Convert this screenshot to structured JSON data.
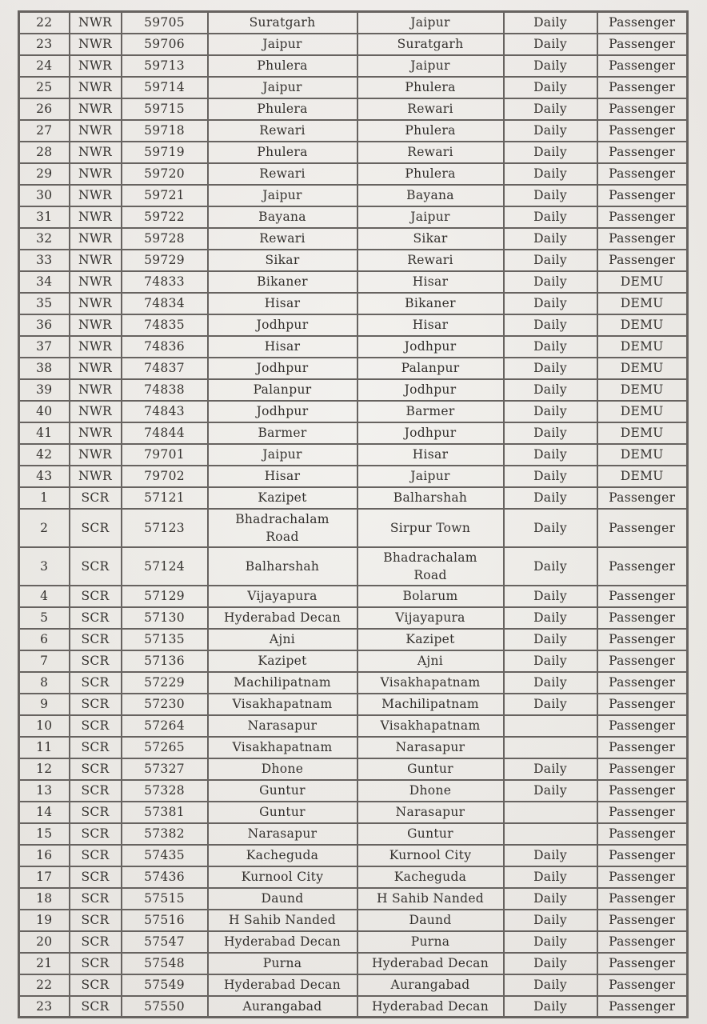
{
  "table": {
    "rows": [
      {
        "sn": "22",
        "zone": "NWR",
        "train_no": "59705",
        "origin": "Suratgarh",
        "destination": "Jaipur",
        "frequency": "Daily",
        "type": "Passenger"
      },
      {
        "sn": "23",
        "zone": "NWR",
        "train_no": "59706",
        "origin": "Jaipur",
        "destination": "Suratgarh",
        "frequency": "Daily",
        "type": "Passenger"
      },
      {
        "sn": "24",
        "zone": "NWR",
        "train_no": "59713",
        "origin": "Phulera",
        "destination": "Jaipur",
        "frequency": "Daily",
        "type": "Passenger"
      },
      {
        "sn": "25",
        "zone": "NWR",
        "train_no": "59714",
        "origin": "Jaipur",
        "destination": "Phulera",
        "frequency": "Daily",
        "type": "Passenger"
      },
      {
        "sn": "26",
        "zone": "NWR",
        "train_no": "59715",
        "origin": "Phulera",
        "destination": "Rewari",
        "frequency": "Daily",
        "type": "Passenger"
      },
      {
        "sn": "27",
        "zone": "NWR",
        "train_no": "59718",
        "origin": "Rewari",
        "destination": "Phulera",
        "frequency": "Daily",
        "type": "Passenger"
      },
      {
        "sn": "28",
        "zone": "NWR",
        "train_no": "59719",
        "origin": "Phulera",
        "destination": "Rewari",
        "frequency": "Daily",
        "type": "Passenger"
      },
      {
        "sn": "29",
        "zone": "NWR",
        "train_no": "59720",
        "origin": "Rewari",
        "destination": "Phulera",
        "frequency": "Daily",
        "type": "Passenger"
      },
      {
        "sn": "30",
        "zone": "NWR",
        "train_no": "59721",
        "origin": "Jaipur",
        "destination": "Bayana",
        "frequency": "Daily",
        "type": "Passenger"
      },
      {
        "sn": "31",
        "zone": "NWR",
        "train_no": "59722",
        "origin": "Bayana",
        "destination": "Jaipur",
        "frequency": "Daily",
        "type": "Passenger"
      },
      {
        "sn": "32",
        "zone": "NWR",
        "train_no": "59728",
        "origin": "Rewari",
        "destination": "Sikar",
        "frequency": "Daily",
        "type": "Passenger"
      },
      {
        "sn": "33",
        "zone": "NWR",
        "train_no": "59729",
        "origin": "Sikar",
        "destination": "Rewari",
        "frequency": "Daily",
        "type": "Passenger"
      },
      {
        "sn": "34",
        "zone": "NWR",
        "train_no": "74833",
        "origin": "Bikaner",
        "destination": "Hisar",
        "frequency": "Daily",
        "type": "DEMU"
      },
      {
        "sn": "35",
        "zone": "NWR",
        "train_no": "74834",
        "origin": "Hisar",
        "destination": "Bikaner",
        "frequency": "Daily",
        "type": "DEMU"
      },
      {
        "sn": "36",
        "zone": "NWR",
        "train_no": "74835",
        "origin": "Jodhpur",
        "destination": "Hisar",
        "frequency": "Daily",
        "type": "DEMU"
      },
      {
        "sn": "37",
        "zone": "NWR",
        "train_no": "74836",
        "origin": "Hisar",
        "destination": "Jodhpur",
        "frequency": "Daily",
        "type": "DEMU"
      },
      {
        "sn": "38",
        "zone": "NWR",
        "train_no": "74837",
        "origin": "Jodhpur",
        "destination": "Palanpur",
        "frequency": "Daily",
        "type": "DEMU"
      },
      {
        "sn": "39",
        "zone": "NWR",
        "train_no": "74838",
        "origin": "Palanpur",
        "destination": "Jodhpur",
        "frequency": "Daily",
        "type": "DEMU"
      },
      {
        "sn": "40",
        "zone": "NWR",
        "train_no": "74843",
        "origin": "Jodhpur",
        "destination": "Barmer",
        "frequency": "Daily",
        "type": "DEMU"
      },
      {
        "sn": "41",
        "zone": "NWR",
        "train_no": "74844",
        "origin": "Barmer",
        "destination": "Jodhpur",
        "frequency": "Daily",
        "type": "DEMU"
      },
      {
        "sn": "42",
        "zone": "NWR",
        "train_no": "79701",
        "origin": "Jaipur",
        "destination": "Hisar",
        "frequency": "Daily",
        "type": "DEMU"
      },
      {
        "sn": "43",
        "zone": "NWR",
        "train_no": "79702",
        "origin": "Hisar",
        "destination": "Jaipur",
        "frequency": "Daily",
        "type": "DEMU"
      },
      {
        "sn": "1",
        "zone": "SCR",
        "train_no": "57121",
        "origin": "Kazipet",
        "destination": "Balharshah",
        "frequency": "Daily",
        "type": "Passenger"
      },
      {
        "sn": "2",
        "zone": "SCR",
        "train_no": "57123",
        "origin": "Bhadrachalam\nRoad",
        "destination": "Sirpur Town",
        "frequency": "Daily",
        "type": "Passenger"
      },
      {
        "sn": "3",
        "zone": "SCR",
        "train_no": "57124",
        "origin": "Balharshah",
        "destination": "Bhadrachalam\nRoad",
        "frequency": "Daily",
        "type": "Passenger"
      },
      {
        "sn": "4",
        "zone": "SCR",
        "train_no": "57129",
        "origin": "Vijayapura",
        "destination": "Bolarum",
        "frequency": "Daily",
        "type": "Passenger"
      },
      {
        "sn": "5",
        "zone": "SCR",
        "train_no": "57130",
        "origin": "Hyderabad Decan",
        "destination": "Vijayapura",
        "frequency": "Daily",
        "type": "Passenger"
      },
      {
        "sn": "6",
        "zone": "SCR",
        "train_no": "57135",
        "origin": "Ajni",
        "destination": "Kazipet",
        "frequency": "Daily",
        "type": "Passenger"
      },
      {
        "sn": "7",
        "zone": "SCR",
        "train_no": "57136",
        "origin": "Kazipet",
        "destination": "Ajni",
        "frequency": "Daily",
        "type": "Passenger"
      },
      {
        "sn": "8",
        "zone": "SCR",
        "train_no": "57229",
        "origin": "Machilipatnam",
        "destination": "Visakhapatnam",
        "frequency": "Daily",
        "type": "Passenger"
      },
      {
        "sn": "9",
        "zone": "SCR",
        "train_no": "57230",
        "origin": "Visakhapatnam",
        "destination": "Machilipatnam",
        "frequency": "Daily",
        "type": "Passenger"
      },
      {
        "sn": "10",
        "zone": "SCR",
        "train_no": "57264",
        "origin": "Narasapur",
        "destination": "Visakhapatnam",
        "frequency": "",
        "type": "Passenger"
      },
      {
        "sn": "11",
        "zone": "SCR",
        "train_no": "57265",
        "origin": "Visakhapatnam",
        "destination": "Narasapur",
        "frequency": "",
        "type": "Passenger"
      },
      {
        "sn": "12",
        "zone": "SCR",
        "train_no": "57327",
        "origin": "Dhone",
        "destination": "Guntur",
        "frequency": "Daily",
        "type": "Passenger"
      },
      {
        "sn": "13",
        "zone": "SCR",
        "train_no": "57328",
        "origin": "Guntur",
        "destination": "Dhone",
        "frequency": "Daily",
        "type": "Passenger"
      },
      {
        "sn": "14",
        "zone": "SCR",
        "train_no": "57381",
        "origin": "Guntur",
        "destination": "Narasapur",
        "frequency": "",
        "type": "Passenger"
      },
      {
        "sn": "15",
        "zone": "SCR",
        "train_no": "57382",
        "origin": "Narasapur",
        "destination": "Guntur",
        "frequency": "",
        "type": "Passenger"
      },
      {
        "sn": "16",
        "zone": "SCR",
        "train_no": "57435",
        "origin": "Kacheguda",
        "destination": "Kurnool City",
        "frequency": "Daily",
        "type": "Passenger"
      },
      {
        "sn": "17",
        "zone": "SCR",
        "train_no": "57436",
        "origin": "Kurnool City",
        "destination": "Kacheguda",
        "frequency": "Daily",
        "type": "Passenger"
      },
      {
        "sn": "18",
        "zone": "SCR",
        "train_no": "57515",
        "origin": "Daund",
        "destination": "H Sahib Nanded",
        "frequency": "Daily",
        "type": "Passenger"
      },
      {
        "sn": "19",
        "zone": "SCR",
        "train_no": "57516",
        "origin": "H Sahib Nanded",
        "destination": "Daund",
        "frequency": "Daily",
        "type": "Passenger"
      },
      {
        "sn": "20",
        "zone": "SCR",
        "train_no": "57547",
        "origin": "Hyderabad Decan",
        "destination": "Purna",
        "frequency": "Daily",
        "type": "Passenger"
      },
      {
        "sn": "21",
        "zone": "SCR",
        "train_no": "57548",
        "origin": "Purna",
        "destination": "Hyderabad Decan",
        "frequency": "Daily",
        "type": "Passenger"
      },
      {
        "sn": "22",
        "zone": "SCR",
        "train_no": "57549",
        "origin": "Hyderabad Decan",
        "destination": "Aurangabad",
        "frequency": "Daily",
        "type": "Passenger"
      },
      {
        "sn": "23",
        "zone": "SCR",
        "train_no": "57550",
        "origin": "Aurangabad",
        "destination": "Hyderabad Decan",
        "frequency": "Daily",
        "type": "Passenger"
      }
    ],
    "colors": {
      "paper": "#edeae6",
      "border": "#676360",
      "ink": "#34312e"
    }
  }
}
